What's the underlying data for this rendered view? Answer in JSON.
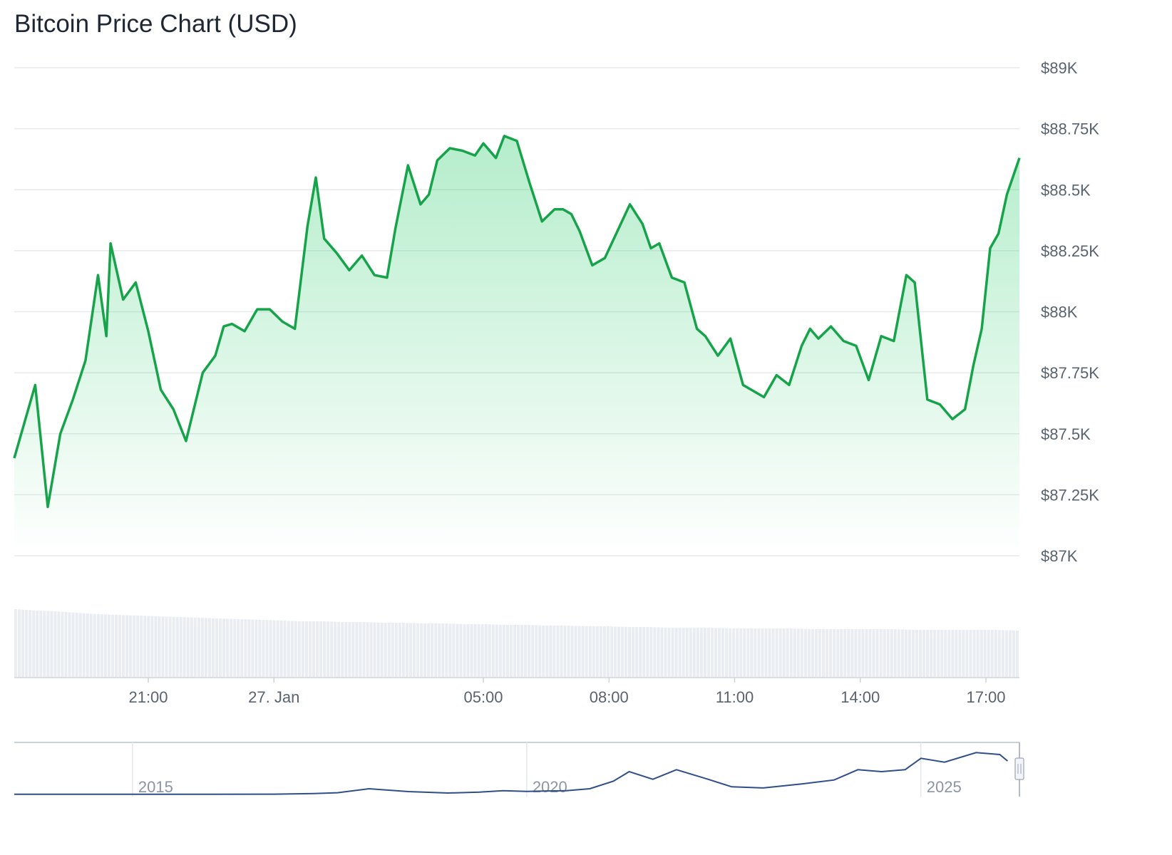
{
  "title": "Bitcoin Price Chart (USD)",
  "colors": {
    "line": "#16a34a",
    "fill_top": "#16c75c",
    "grid": "#e6e9ee",
    "volume": "#e9edf2",
    "navigator_line": "#2f4e8a",
    "navigator_border": "#b7c3d6"
  },
  "chart_data": {
    "type": "area",
    "title": "Bitcoin Price Chart (USD)",
    "xlabel": "",
    "ylabel": "",
    "ylim": [
      87000,
      89000
    ],
    "grid": true,
    "ytick_labels": [
      {
        "value": 89000,
        "label": "$89K"
      },
      {
        "value": 88750,
        "label": "$88.75K"
      },
      {
        "value": 88500,
        "label": "$88.5K"
      },
      {
        "value": 88250,
        "label": "$88.25K"
      },
      {
        "value": 88000,
        "label": "$88K"
      },
      {
        "value": 87750,
        "label": "$87.75K"
      },
      {
        "value": 87500,
        "label": "$87.5K"
      },
      {
        "value": 87250,
        "label": "$87.25K"
      },
      {
        "value": 87000,
        "label": "$87K"
      }
    ],
    "xlim_hours": [
      17.8,
      41.8
    ],
    "xtick_labels": [
      {
        "hour": 21,
        "label": "21:00"
      },
      {
        "hour": 24,
        "label": "27. Jan"
      },
      {
        "hour": 29,
        "label": "05:00"
      },
      {
        "hour": 32,
        "label": "08:00"
      },
      {
        "hour": 35,
        "label": "11:00"
      },
      {
        "hour": 38,
        "label": "14:00"
      },
      {
        "hour": 41,
        "label": "17:00"
      }
    ],
    "series": [
      {
        "name": "",
        "x_hour": [
          17.8,
          18.3,
          18.6,
          18.9,
          19.2,
          19.5,
          19.8,
          20.0,
          20.1,
          20.4,
          20.7,
          21.0,
          21.3,
          21.6,
          21.9,
          22.3,
          22.6,
          22.8,
          23.0,
          23.3,
          23.6,
          23.9,
          24.2,
          24.5,
          24.8,
          25.0,
          25.2,
          25.5,
          25.8,
          26.1,
          26.4,
          26.7,
          26.9,
          27.2,
          27.5,
          27.7,
          27.9,
          28.2,
          28.5,
          28.8,
          29.0,
          29.3,
          29.5,
          29.8,
          30.1,
          30.4,
          30.7,
          30.9,
          31.1,
          31.3,
          31.6,
          31.9,
          32.2,
          32.5,
          32.8,
          33.0,
          33.2,
          33.5,
          33.8,
          34.1,
          34.3,
          34.6,
          34.9,
          35.2,
          35.4,
          35.7,
          36.0,
          36.3,
          36.6,
          36.8,
          37.0,
          37.3,
          37.6,
          37.9,
          38.2,
          38.5,
          38.8,
          39.1,
          39.3,
          39.6,
          39.9,
          40.2,
          40.5,
          40.7,
          40.9,
          41.1,
          41.3,
          41.5,
          41.8
        ],
        "y": [
          87400,
          87700,
          87200,
          87500,
          87640,
          87800,
          88150,
          87900,
          88280,
          88050,
          88120,
          87920,
          87680,
          87600,
          87470,
          87750,
          87820,
          87940,
          87950,
          87920,
          88010,
          88010,
          87960,
          87930,
          88350,
          88550,
          88300,
          88240,
          88170,
          88230,
          88150,
          88140,
          88340,
          88600,
          88440,
          88480,
          88620,
          88670,
          88660,
          88640,
          88690,
          88630,
          88720,
          88700,
          88530,
          88370,
          88420,
          88420,
          88400,
          88330,
          88190,
          88220,
          88330,
          88440,
          88360,
          88260,
          88280,
          88140,
          88120,
          87930,
          87900,
          87820,
          87890,
          87700,
          87680,
          87650,
          87740,
          87700,
          87860,
          87930,
          87890,
          87940,
          87880,
          87860,
          87720,
          87900,
          87880,
          88150,
          88120,
          87640,
          87620,
          87560,
          87600,
          87780,
          87930,
          88260,
          88320,
          88480,
          88630
        ]
      }
    ],
    "volume_relative": [
      0.95,
      0.93,
      0.92,
      0.9,
      0.88,
      0.87,
      0.86,
      0.85,
      0.84,
      0.83,
      0.82,
      0.81,
      0.8,
      0.79,
      0.78,
      0.78,
      0.77,
      0.77,
      0.76,
      0.76,
      0.75,
      0.75,
      0.74,
      0.74,
      0.73,
      0.73,
      0.72,
      0.72,
      0.71,
      0.71,
      0.7,
      0.7,
      0.69,
      0.69,
      0.69,
      0.68,
      0.68,
      0.68,
      0.68,
      0.67,
      0.67,
      0.67,
      0.67,
      0.67,
      0.66,
      0.66,
      0.66,
      0.66,
      0.66,
      0.65
    ],
    "navigator": {
      "tick_labels": [
        {
          "year": 2015,
          "label": "2015"
        },
        {
          "year": 2020,
          "label": "2020"
        },
        {
          "year": 2025,
          "label": "2025"
        }
      ],
      "xlim_years": [
        2013.5,
        2026.25
      ],
      "years": [
        2013.5,
        2015.0,
        2016.0,
        2016.8,
        2017.3,
        2017.6,
        2018.0,
        2018.5,
        2019.0,
        2019.4,
        2019.7,
        2020.0,
        2020.5,
        2020.8,
        2021.1,
        2021.3,
        2021.6,
        2021.9,
        2022.3,
        2022.6,
        2023.0,
        2023.5,
        2023.9,
        2024.2,
        2024.5,
        2024.8,
        2025.0,
        2025.3,
        2025.7,
        2026.0,
        2026.1
      ],
      "btc_usd": [
        500,
        300,
        430,
        800,
        2500,
        4500,
        15000,
        7500,
        3800,
        6000,
        10000,
        8000,
        10000,
        15000,
        35000,
        60000,
        40000,
        65000,
        40000,
        20000,
        17000,
        28000,
        38000,
        65000,
        60000,
        65000,
        95000,
        85000,
        110000,
        105000,
        88000
      ]
    }
  }
}
